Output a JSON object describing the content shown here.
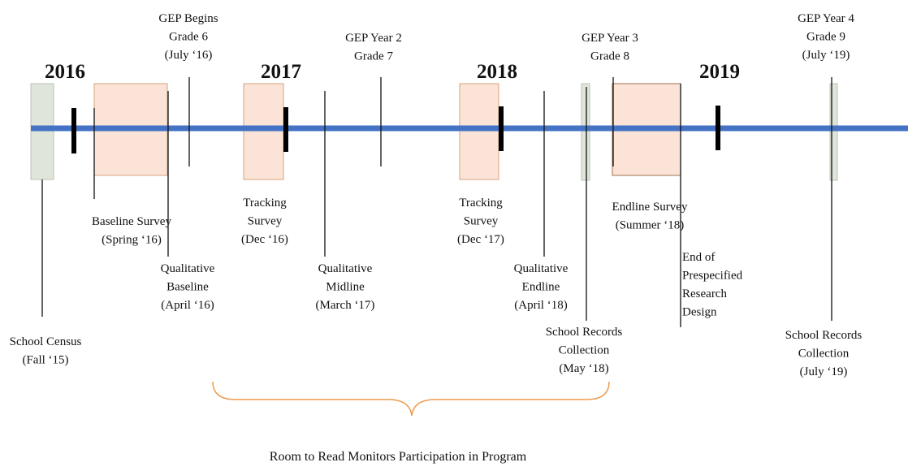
{
  "years": [
    "2016",
    "2017",
    "2018",
    "2019"
  ],
  "labels": [
    {
      "lines": [
        "GEP Begins",
        "Grade 6",
        "(July ‘16)"
      ]
    },
    {
      "lines": [
        "GEP Year 2",
        "Grade 7"
      ]
    },
    {
      "lines": [
        "GEP Year 3",
        "Grade 8"
      ]
    },
    {
      "lines": [
        "GEP Year 4",
        "Grade 9",
        "(July ‘19)"
      ]
    },
    {
      "lines": [
        "Baseline Survey",
        "(Spring ‘16)"
      ]
    },
    {
      "lines": [
        "Tracking",
        "Survey",
        "(Dec ‘16)"
      ]
    },
    {
      "lines": [
        "Tracking",
        "Survey",
        "(Dec ‘17)"
      ]
    },
    {
      "lines": [
        "Endline Survey",
        "(Summer ‘18)"
      ]
    },
    {
      "lines": [
        "Qualitative",
        "Baseline",
        "(April ‘16)"
      ]
    },
    {
      "lines": [
        "Qualitative",
        "Midline",
        "(March ‘17)"
      ]
    },
    {
      "lines": [
        "Qualitative",
        "Endline",
        "(April ‘18)"
      ]
    },
    {
      "lines": [
        "End of",
        "Prespecified",
        "Research",
        "Design"
      ]
    },
    {
      "lines": [
        "School Census",
        "(Fall ‘15)"
      ]
    },
    {
      "lines": [
        "School Records",
        "Collection",
        "(May ‘18)"
      ]
    },
    {
      "lines": [
        "School Records",
        "Collection",
        "(July ‘19)"
      ]
    }
  ],
  "bracket_label": "Room to Read Monitors Participation in Program"
}
